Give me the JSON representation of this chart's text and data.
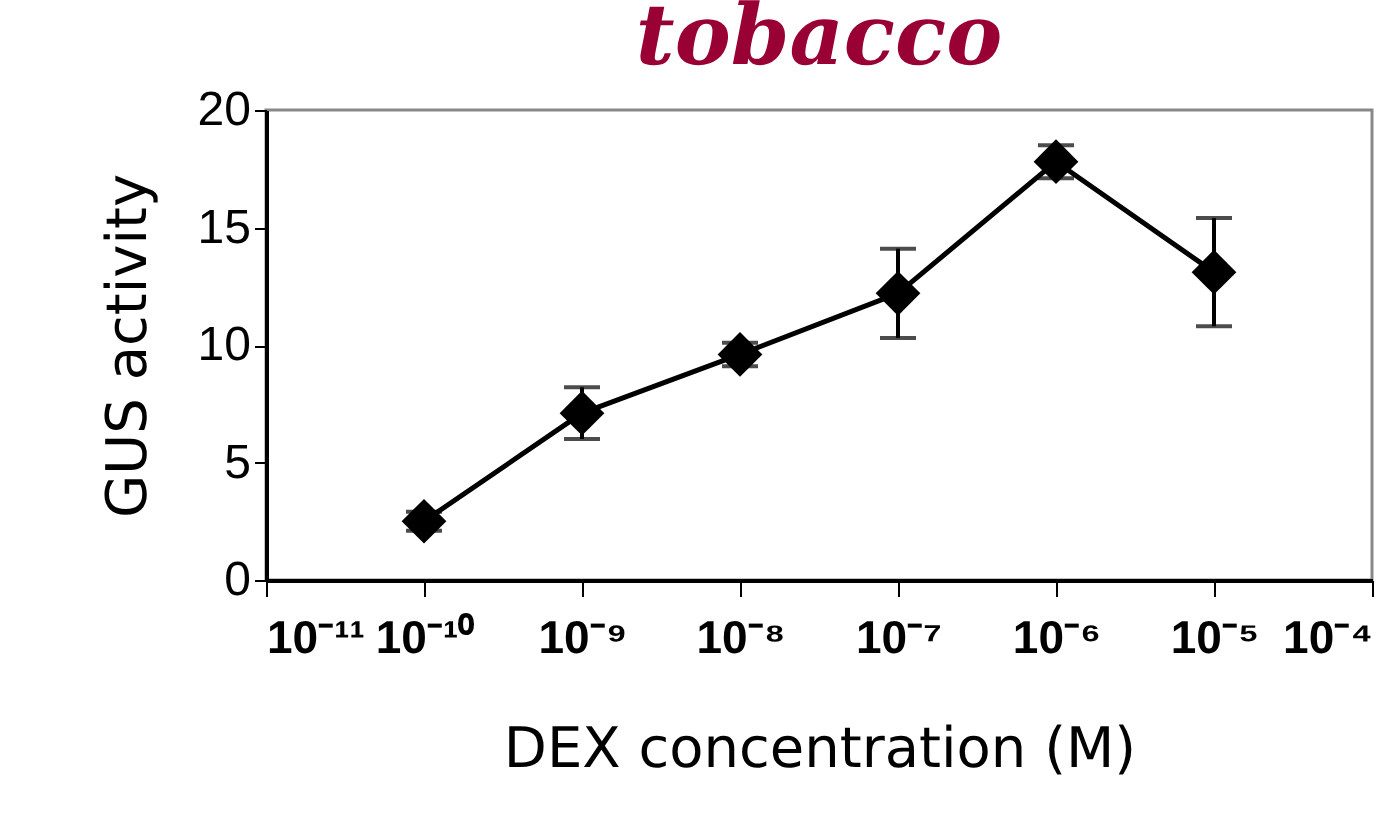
{
  "chart_data": {
    "type": "line",
    "title": "tobacco",
    "xlabel": "DEX concentration (M)",
    "ylabel": "GUS activity",
    "log": "x",
    "x": [
      1e-10,
      1e-09,
      1e-08,
      1e-07,
      1e-06,
      1e-05
    ],
    "series": [
      {
        "color": "#000000",
        "values": [
          2.5,
          7.1,
          9.6,
          12.2,
          17.8,
          13.1
        ],
        "errors": [
          0.4,
          1.1,
          0.5,
          1.9,
          0.7,
          2.3
        ]
      }
    ],
    "xlim": [
      1e-11,
      0.0001
    ],
    "xticks": [
      {
        "value": 1e-11,
        "label": "10⁻¹¹"
      },
      {
        "value": 1e-10,
        "label": "10⁻¹⁰"
      },
      {
        "value": 1e-09,
        "label": "10⁻⁹"
      },
      {
        "value": 1e-08,
        "label": "10⁻⁸"
      },
      {
        "value": 1e-07,
        "label": "10⁻⁷"
      },
      {
        "value": 1e-06,
        "label": "10⁻⁶"
      },
      {
        "value": 1e-05,
        "label": "10⁻⁵"
      },
      {
        "value": 0.0001,
        "label": "10⁻⁴"
      }
    ],
    "ylim": [
      0,
      20
    ],
    "yticks": [
      0,
      5,
      10,
      15,
      20
    ],
    "grid": false,
    "marker": "diamond",
    "line_style": "solid"
  }
}
